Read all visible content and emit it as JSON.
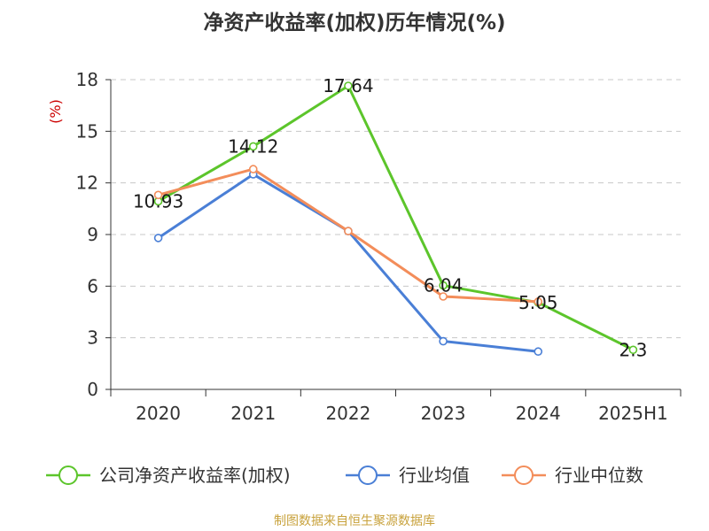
{
  "title": "净资产收益率(加权)历年情况(%)",
  "source": "制图数据来自恒生聚源数据库",
  "chart_data": {
    "type": "line",
    "title": "净资产收益率(加权)历年情况(%)",
    "ylabel": "(%)",
    "xlabel": "",
    "categories": [
      "2020",
      "2021",
      "2022",
      "2023",
      "2024",
      "2025H1"
    ],
    "ylim": [
      0,
      18
    ],
    "yticks": [
      0,
      3,
      6,
      9,
      12,
      15,
      18
    ],
    "grid": true,
    "legend_position": "bottom",
    "series": [
      {
        "name": "公司净资产收益率(加权)",
        "color": "#5cc52b",
        "values": [
          10.93,
          14.12,
          17.64,
          6.04,
          5.05,
          2.3
        ],
        "labels": [
          "10.93",
          "14.12",
          "17.64",
          "6.04",
          "5.05",
          "2.3"
        ]
      },
      {
        "name": "行业均值",
        "color": "#4a7fd6",
        "values": [
          8.8,
          12.5,
          9.2,
          2.8,
          2.2,
          null
        ]
      },
      {
        "name": "行业中位数",
        "color": "#f38d5a",
        "values": [
          11.3,
          12.8,
          9.2,
          5.4,
          5.1,
          null
        ]
      }
    ]
  }
}
